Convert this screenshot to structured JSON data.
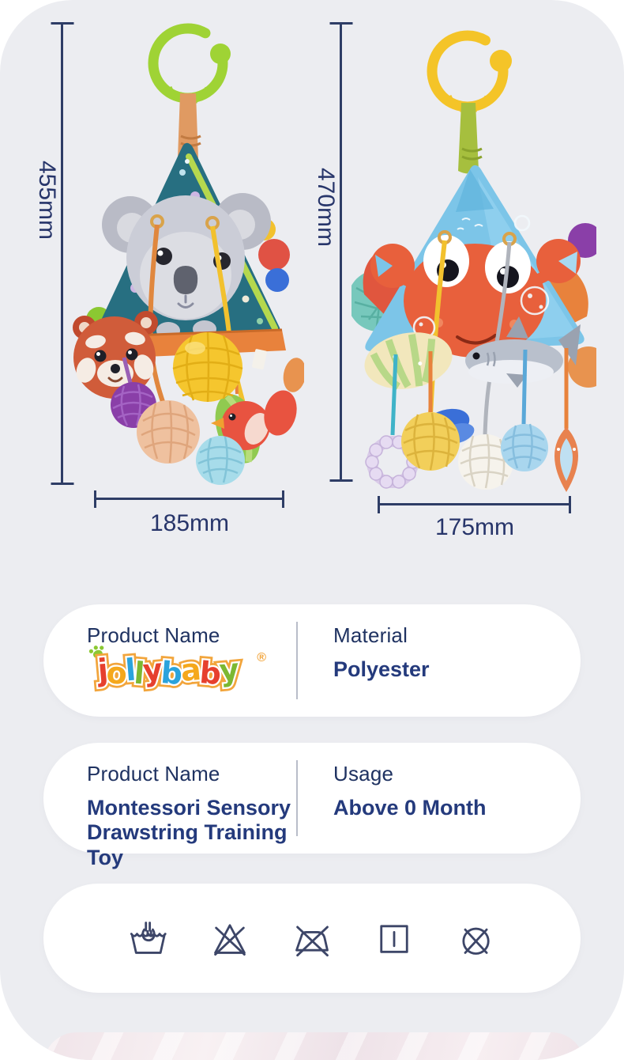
{
  "page": {
    "background": "#ffffff",
    "panel_background": "#ecedf1"
  },
  "colors": {
    "text_navy": "#1f3261",
    "text_navy_bold": "#243a7c",
    "dimension_line": "#2e3d66",
    "divider": "#b9bdc9",
    "care_icon_stroke": "#3d4668",
    "logo_outline": "#f2a53c"
  },
  "dimensions": {
    "left_toy_height": "455mm",
    "left_toy_width": "185mm",
    "right_toy_height": "470mm",
    "right_toy_width": "175mm"
  },
  "spec_cards": [
    {
      "left_label": "Product Name",
      "right_label": "Material",
      "right_value": "Polyester"
    },
    {
      "left_label": "Product Name",
      "left_value": "Montessori Sensory\nDrawstring Training Toy",
      "right_label": "Usage",
      "right_value": "Above 0 Month"
    }
  ],
  "brand": {
    "name": "jollybaby",
    "registered": "®",
    "letters": [
      {
        "ch": "j",
        "color": "#e6402e"
      },
      {
        "ch": "o",
        "color": "#f5a81c"
      },
      {
        "ch": "l",
        "color": "#2ba3dc"
      },
      {
        "ch": "l",
        "color": "#7cb832"
      },
      {
        "ch": "y",
        "color": "#e6402e"
      },
      {
        "ch": "b",
        "color": "#2ba3dc"
      },
      {
        "ch": "a",
        "color": "#f5a81c"
      },
      {
        "ch": "b",
        "color": "#e6402e"
      },
      {
        "ch": "y",
        "color": "#7cb832"
      }
    ]
  },
  "care_symbols": [
    {
      "name": "hand-wash-icon"
    },
    {
      "name": "do-not-bleach-icon"
    },
    {
      "name": "do-not-iron-icon"
    },
    {
      "name": "drip-dry-icon"
    },
    {
      "name": "do-not-dry-clean-icon"
    }
  ],
  "illustrations": {
    "left_toy": "koala-pyramid-hanging-rattle",
    "right_toy": "crab-pyramid-hanging-rattle"
  }
}
